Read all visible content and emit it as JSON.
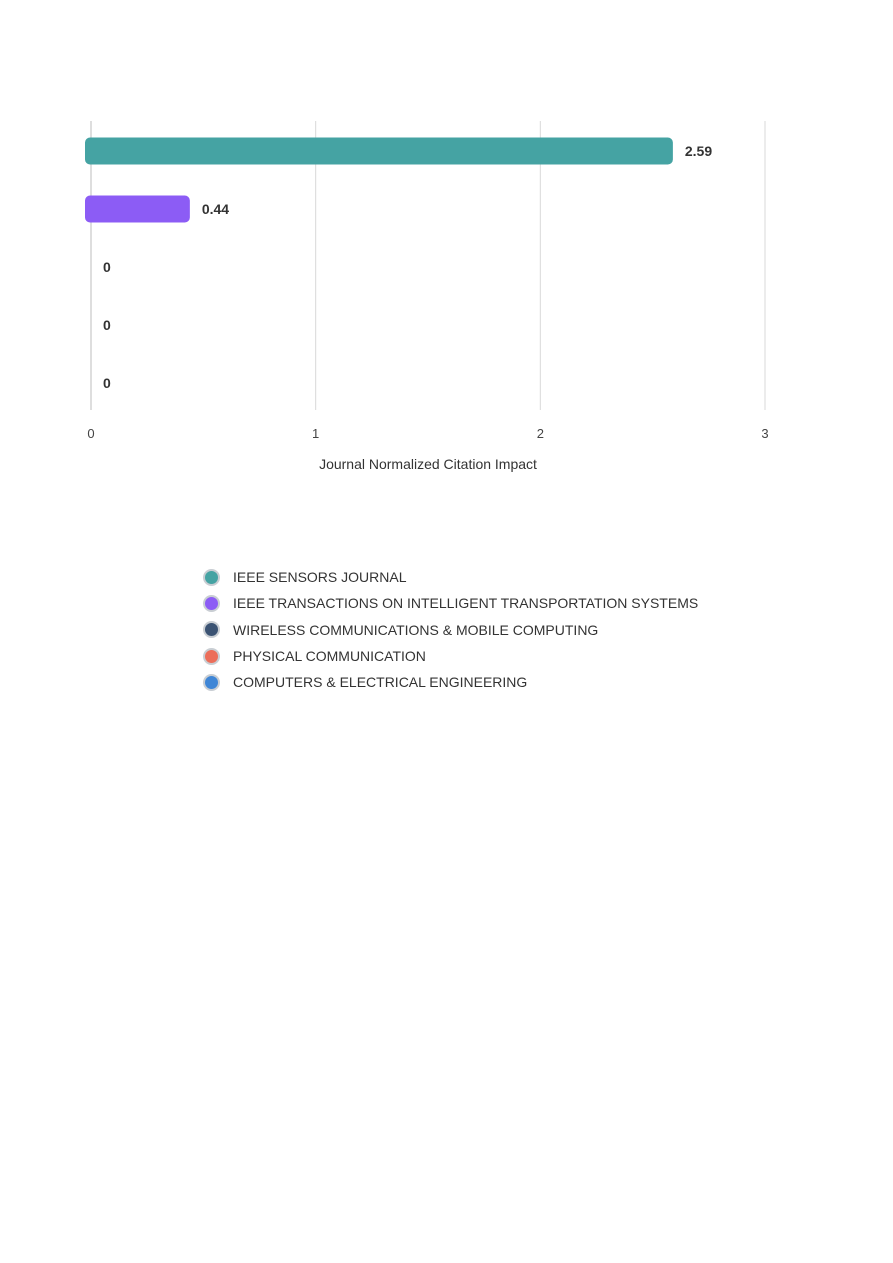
{
  "chart_data": {
    "type": "bar",
    "orientation": "horizontal",
    "categories": [
      "IEEE SENSORS JOURNAL",
      "IEEE TRANSACTIONS ON INTELLIGENT TRANSPORTATION SYSTEMS",
      "WIRELESS COMMUNICATIONS & MOBILE COMPUTING",
      "PHYSICAL COMMUNICATION",
      "COMPUTERS & ELECTRICAL ENGINEERING"
    ],
    "values": [
      2.59,
      0.44,
      0,
      0,
      0
    ],
    "value_labels": [
      "2.59",
      "0.44",
      "0",
      "0",
      "0"
    ],
    "colors": [
      "#45a3a3",
      "#8c5cf5",
      "#3b5373",
      "#ec6e5a",
      "#3f86d6"
    ],
    "xlabel": "Journal Normalized Citation Impact",
    "xlim": [
      0,
      3
    ],
    "xticks": [
      0,
      1,
      2,
      3
    ],
    "xtick_labels": [
      "0",
      "1",
      "2",
      "3"
    ],
    "grid": true,
    "legend_position": "bottom"
  }
}
